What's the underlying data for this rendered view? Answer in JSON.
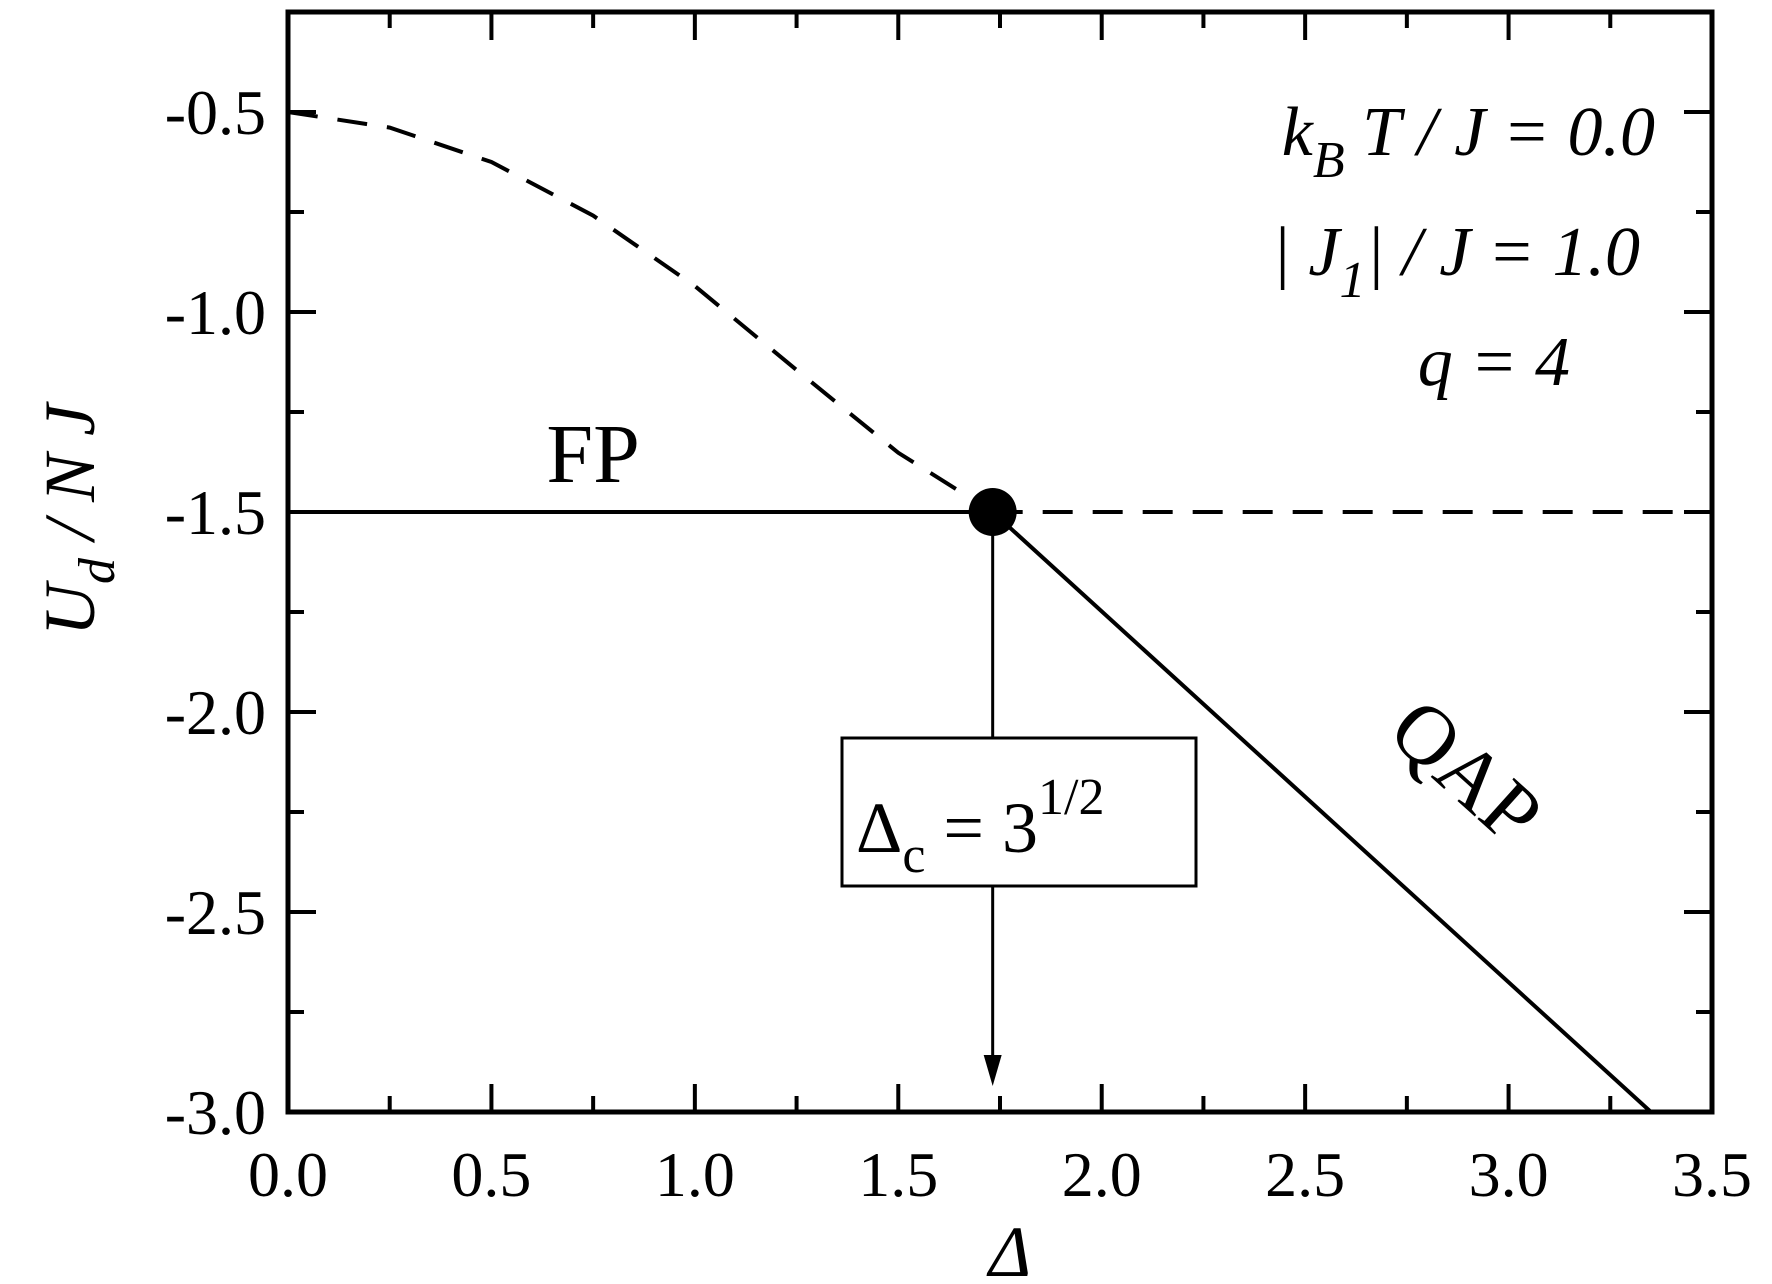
{
  "chart_data": {
    "type": "line",
    "xlabel": "Δ",
    "ylabel_parts": {
      "main": "U",
      "sub": "d",
      "rest": " / N J"
    },
    "xlim": [
      0.0,
      3.5
    ],
    "ylim": [
      -3.0,
      -0.25
    ],
    "x_ticks": [
      "0.0",
      "0.5",
      "1.0",
      "1.5",
      "2.0",
      "2.5",
      "3.0",
      "3.5"
    ],
    "y_ticks": [
      "-0.5",
      "-1.0",
      "-1.5",
      "-2.0",
      "-2.5",
      "-3.0"
    ],
    "series": [
      {
        "style": "dashed",
        "x": [
          0.0,
          0.25,
          0.5,
          0.75,
          1.0,
          1.25,
          1.5,
          1.732
        ],
        "y": [
          -0.5,
          -0.539,
          -0.625,
          -0.759,
          -0.935,
          -1.145,
          -1.352,
          -1.5
        ]
      },
      {
        "style": "solid",
        "x": [
          0.0,
          1.732
        ],
        "y": [
          -1.5,
          -1.5
        ]
      },
      {
        "style": "dashed",
        "x": [
          1.732,
          3.5
        ],
        "y": [
          -1.5,
          -1.5
        ]
      },
      {
        "style": "solid",
        "x": [
          1.732,
          3.35
        ],
        "y": [
          -1.5,
          -3.0
        ]
      }
    ],
    "critical_point": {
      "x": 1.732,
      "y": -1.5
    },
    "regions": [
      {
        "label": "FP",
        "x": 0.75,
        "y": -1.35
      },
      {
        "label": "QAP",
        "x": 2.85,
        "y": -2.2
      }
    ],
    "annotations": {
      "line1": {
        "k": "k",
        "ksub": "B",
        "rest": " T / J = 0.0"
      },
      "line2": {
        "pre": "| J",
        "sub": "1",
        "rest": "| / J = 1.0"
      },
      "line3": {
        "text": "q = 4"
      }
    },
    "critical_box": {
      "pre": "Δ",
      "sub": "c",
      "mid": " = 3",
      "sup": "1/2"
    }
  }
}
